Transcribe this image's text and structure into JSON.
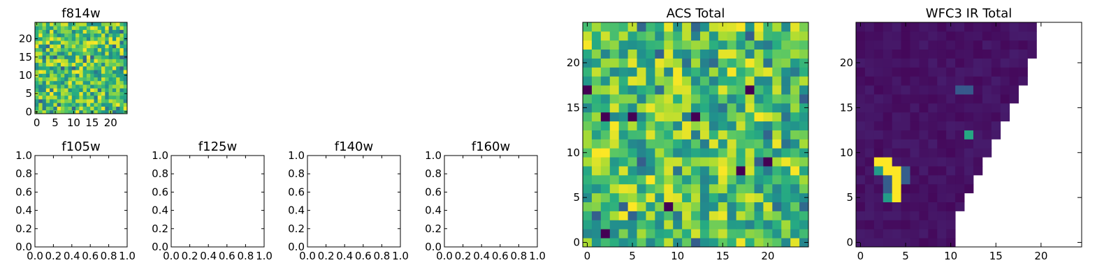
{
  "chart_data": [
    {
      "id": "f814w",
      "type": "heatmap",
      "title": "f814w",
      "grid_size": [
        25,
        25
      ],
      "colormap": "viridis",
      "xlim": [
        -0.5,
        24.5
      ],
      "ylim": [
        -0.5,
        24.5
      ],
      "xticks": [
        "0",
        "5",
        "10",
        "15",
        "20"
      ],
      "yticks": [
        "0",
        "5",
        "10",
        "15",
        "20"
      ],
      "pattern": "noise"
    },
    {
      "id": "f105w",
      "type": "heatmap",
      "title": "f105w",
      "empty": true,
      "xlim": [
        0,
        1
      ],
      "ylim": [
        0,
        1
      ],
      "xticks": [
        "0.0",
        "0.2",
        "0.4",
        "0.6",
        "0.8",
        "1.0"
      ],
      "yticks": [
        "0.0",
        "0.2",
        "0.4",
        "0.6",
        "0.8",
        "1.0"
      ]
    },
    {
      "id": "f125w",
      "type": "heatmap",
      "title": "f125w",
      "empty": true,
      "xlim": [
        0,
        1
      ],
      "ylim": [
        0,
        1
      ],
      "xticks": [
        "0.0",
        "0.2",
        "0.4",
        "0.6",
        "0.8",
        "1.0"
      ],
      "yticks": [
        "0.0",
        "0.2",
        "0.4",
        "0.6",
        "0.8",
        "1.0"
      ]
    },
    {
      "id": "f140w",
      "type": "heatmap",
      "title": "f140w",
      "empty": true,
      "xlim": [
        0,
        1
      ],
      "ylim": [
        0,
        1
      ],
      "xticks": [
        "0.0",
        "0.2",
        "0.4",
        "0.6",
        "0.8",
        "1.0"
      ],
      "yticks": [
        "0.0",
        "0.2",
        "0.4",
        "0.6",
        "0.8",
        "1.0"
      ]
    },
    {
      "id": "f160w",
      "type": "heatmap",
      "title": "f160w",
      "empty": true,
      "xlim": [
        0,
        1
      ],
      "ylim": [
        0,
        1
      ],
      "xticks": [
        "0.0",
        "0.2",
        "0.4",
        "0.6",
        "0.8",
        "1.0"
      ],
      "yticks": [
        "0.0",
        "0.2",
        "0.4",
        "0.6",
        "0.8",
        "1.0"
      ]
    },
    {
      "id": "acs-total",
      "type": "heatmap",
      "title": "ACS Total",
      "grid_size": [
        25,
        25
      ],
      "colormap": "viridis",
      "xlim": [
        -0.5,
        24.5
      ],
      "ylim": [
        -0.5,
        24.5
      ],
      "xticks": [
        "0",
        "5",
        "10",
        "15",
        "20"
      ],
      "yticks": [
        "0",
        "5",
        "10",
        "15",
        "20"
      ],
      "pattern": "noise",
      "dark_pixels": [
        [
          2,
          1
        ],
        [
          9,
          4
        ],
        [
          0,
          17
        ],
        [
          18,
          17
        ],
        [
          2,
          14
        ],
        [
          5,
          14
        ],
        [
          12,
          14
        ],
        [
          17,
          8
        ],
        [
          20,
          9
        ]
      ]
    },
    {
      "id": "wfc3-ir-total",
      "type": "heatmap",
      "title": "WFC3 IR Total",
      "grid_size": [
        25,
        25
      ],
      "colormap": "viridis",
      "xlim": [
        -0.5,
        24.5
      ],
      "ylim": [
        -0.5,
        24.5
      ],
      "xticks": [
        "0",
        "5",
        "10",
        "15",
        "20"
      ],
      "yticks": [
        "0",
        "5",
        "10",
        "15",
        "20"
      ],
      "pattern": "mostly-low-with-source",
      "bright_pixels": [
        [
          2,
          9
        ],
        [
          3,
          9
        ],
        [
          3,
          8
        ],
        [
          4,
          8
        ],
        [
          4,
          7
        ],
        [
          4,
          6
        ],
        [
          4,
          5
        ]
      ],
      "mid_pixels": [
        [
          2,
          8
        ],
        [
          3,
          5
        ],
        [
          12,
          12
        ],
        [
          11,
          17
        ],
        [
          12,
          17
        ]
      ],
      "low_mid_pixels": [
        [
          5,
          7
        ],
        [
          5,
          8
        ],
        [
          3,
          6
        ],
        [
          3,
          7
        ]
      ],
      "empty_region_right_edge": [
        [
          0,
          11
        ],
        [
          1,
          11
        ],
        [
          2,
          11
        ],
        [
          3,
          11
        ],
        [
          4,
          12
        ],
        [
          5,
          12
        ],
        [
          6,
          13
        ],
        [
          7,
          13
        ],
        [
          8,
          14
        ],
        [
          9,
          14
        ],
        [
          10,
          15
        ],
        [
          11,
          15
        ],
        [
          12,
          16
        ],
        [
          13,
          16
        ],
        [
          14,
          17
        ],
        [
          15,
          17
        ],
        [
          16,
          18
        ],
        [
          17,
          18
        ],
        [
          18,
          19
        ],
        [
          19,
          19
        ],
        [
          20,
          19
        ],
        [
          21,
          20
        ],
        [
          22,
          20
        ],
        [
          23,
          20
        ],
        [
          24,
          20
        ]
      ]
    }
  ]
}
